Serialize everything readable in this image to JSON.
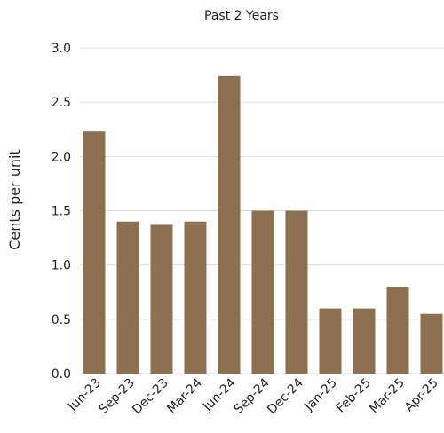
{
  "chart_data": {
    "type": "bar",
    "title": "Past 2 Years",
    "xlabel": "",
    "ylabel": "Cents per unit",
    "categories": [
      "Jun-23",
      "Sep-23",
      "Dec-23",
      "Mar-24",
      "Jun-24",
      "Sep-24",
      "Dec-24",
      "Jan-25",
      "Feb-25",
      "Mar-25",
      "Apr-25"
    ],
    "values": [
      2.23,
      1.4,
      1.37,
      1.4,
      2.74,
      1.5,
      1.5,
      0.6,
      0.6,
      0.8,
      0.55
    ],
    "ylim": [
      0,
      3.0
    ],
    "yticks": [
      "0.0",
      "0.5",
      "1.0",
      "1.5",
      "2.0",
      "2.5",
      "3.0"
    ],
    "grid": true,
    "bar_color": "#8c704f",
    "grid_color": "#dddddd"
  }
}
